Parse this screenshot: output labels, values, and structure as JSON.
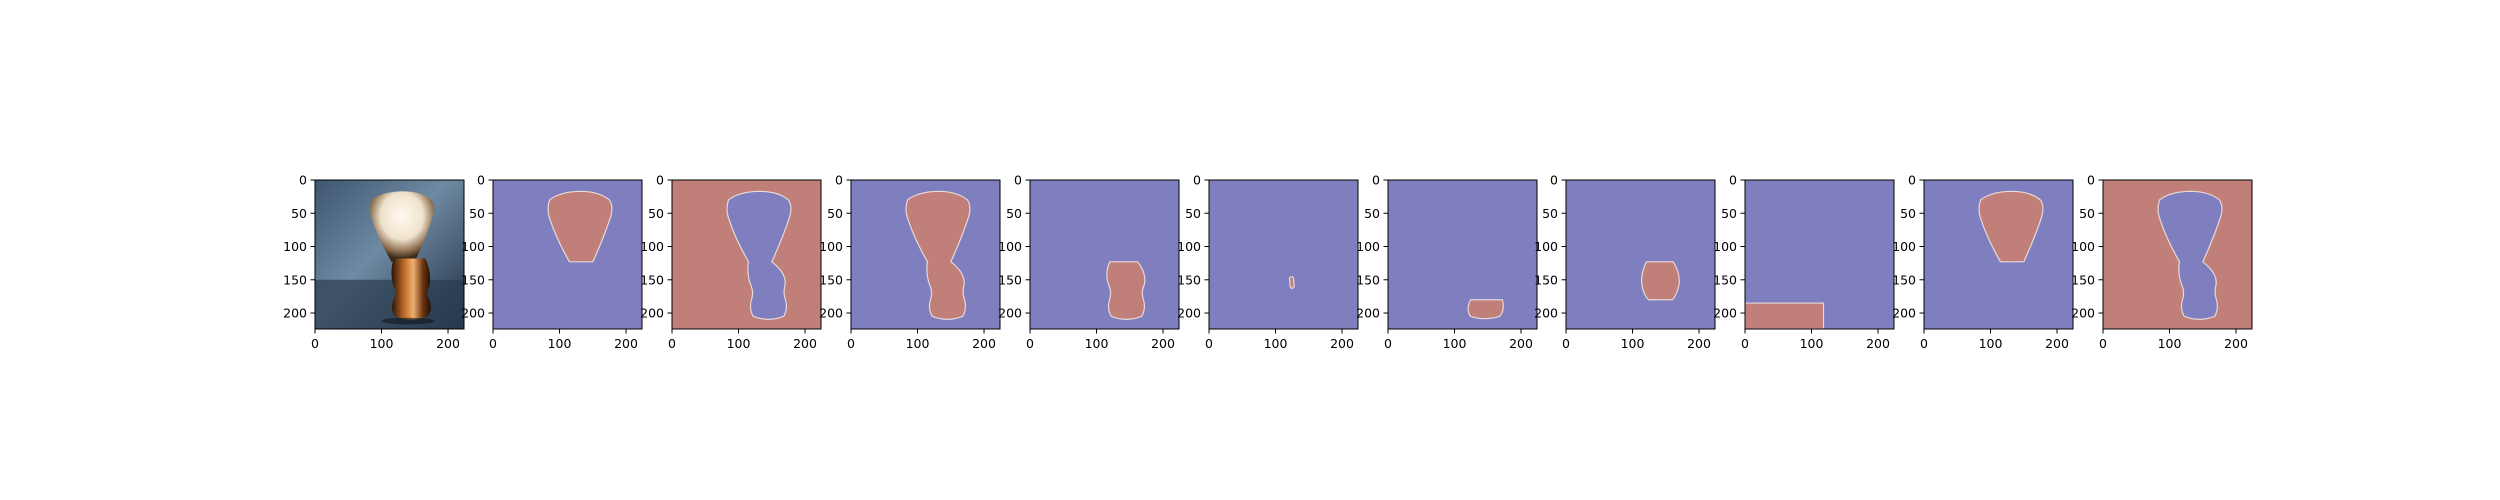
{
  "figure": {
    "background": "#ffffff",
    "mask_colors": {
      "foreground": "#c17f7a",
      "background": "#7f7fbf",
      "edge": "#e8d8d8"
    }
  },
  "chart_data": [
    {
      "type": "image",
      "content": "photo of shaving brush",
      "xticks": [
        0,
        100,
        200
      ],
      "yticks": [
        0,
        50,
        100,
        150,
        200
      ],
      "xlim": [
        0,
        224
      ],
      "ylim": [
        224,
        0
      ]
    },
    {
      "type": "heatmap",
      "content": "binary mask — brush knot",
      "xticks": [
        0,
        100,
        200
      ],
      "yticks": [
        0,
        50,
        100,
        150,
        200
      ],
      "xlim": [
        0,
        224
      ],
      "ylim": [
        224,
        0
      ],
      "foreground": "knot"
    },
    {
      "type": "heatmap",
      "content": "binary mask — background (everything except brush)",
      "xticks": [
        0,
        100,
        200
      ],
      "yticks": [
        0,
        50,
        100,
        150,
        200
      ],
      "xlim": [
        0,
        224
      ],
      "ylim": [
        224,
        0
      ],
      "foreground": "background"
    },
    {
      "type": "heatmap",
      "content": "binary mask — whole brush",
      "xticks": [
        0,
        100,
        200
      ],
      "yticks": [
        0,
        50,
        100,
        150,
        200
      ],
      "xlim": [
        0,
        224
      ],
      "ylim": [
        224,
        0
      ],
      "foreground": "brush"
    },
    {
      "type": "heatmap",
      "content": "binary mask — handle",
      "xticks": [
        0,
        100,
        200
      ],
      "yticks": [
        0,
        50,
        100,
        150,
        200
      ],
      "xlim": [
        0,
        224
      ],
      "ylim": [
        224,
        0
      ],
      "foreground": "handle"
    },
    {
      "type": "heatmap",
      "content": "binary mask — small highlight on handle",
      "xticks": [
        0,
        100,
        200
      ],
      "yticks": [
        0,
        50,
        100,
        150,
        200
      ],
      "xlim": [
        0,
        224
      ],
      "ylim": [
        224,
        0
      ],
      "foreground": "highlight"
    },
    {
      "type": "heatmap",
      "content": "binary mask — base of handle",
      "xticks": [
        0,
        100,
        200
      ],
      "yticks": [
        0,
        50,
        100,
        150,
        200
      ],
      "xlim": [
        0,
        224
      ],
      "ylim": [
        224,
        0
      ],
      "foreground": "base"
    },
    {
      "type": "heatmap",
      "content": "binary mask — handle body",
      "xticks": [
        0,
        100,
        200
      ],
      "yticks": [
        0,
        50,
        100,
        150,
        200
      ],
      "xlim": [
        0,
        224
      ],
      "ylim": [
        224,
        0
      ],
      "foreground": "handle-body"
    },
    {
      "type": "heatmap",
      "content": "binary mask — bottom-left surface strip",
      "xticks": [
        0,
        100,
        200
      ],
      "yticks": [
        0,
        50,
        100,
        150,
        200
      ],
      "xlim": [
        0,
        224
      ],
      "ylim": [
        224,
        0
      ],
      "foreground": "surface"
    },
    {
      "type": "heatmap",
      "content": "binary mask — brush knot",
      "xticks": [
        0,
        100,
        200
      ],
      "yticks": [
        0,
        50,
        100,
        150,
        200
      ],
      "xlim": [
        0,
        224
      ],
      "ylim": [
        224,
        0
      ],
      "foreground": "knot"
    },
    {
      "type": "heatmap",
      "content": "binary mask — background (everything except brush)",
      "xticks": [
        0,
        100,
        200
      ],
      "yticks": [
        0,
        50,
        100,
        150,
        200
      ],
      "xlim": [
        0,
        224
      ],
      "ylim": [
        224,
        0
      ],
      "foreground": "background"
    }
  ]
}
